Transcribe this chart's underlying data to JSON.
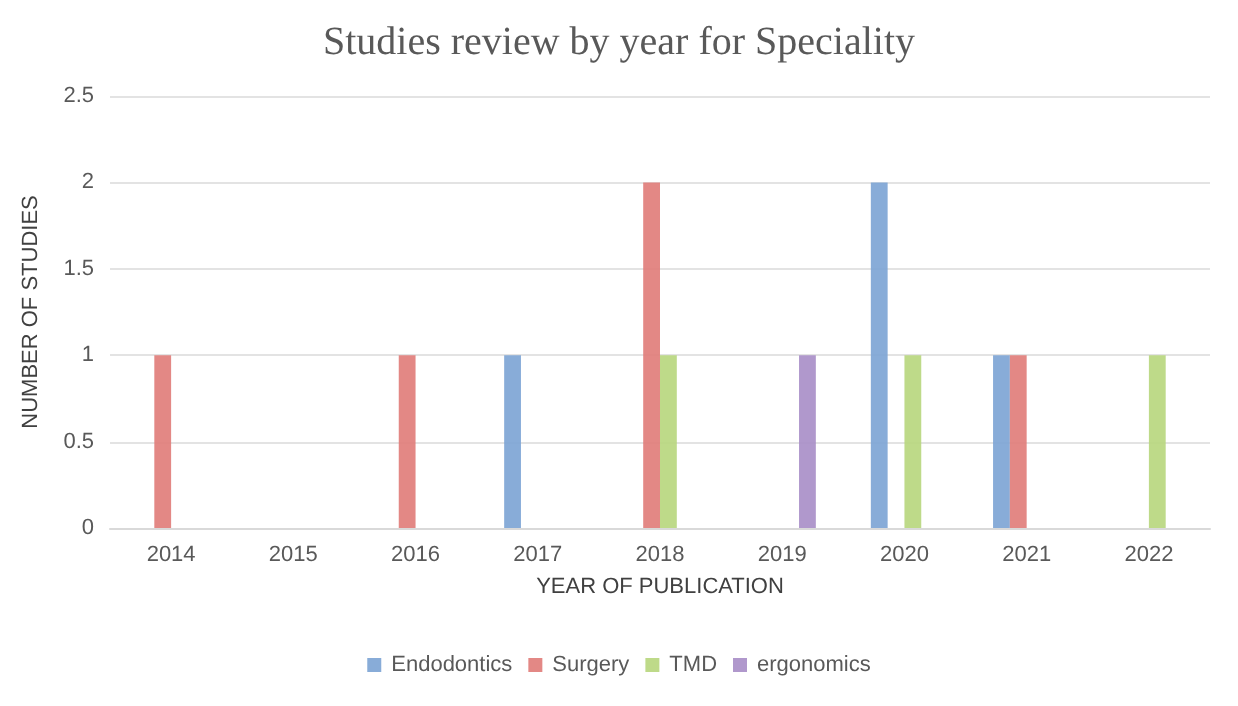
{
  "chart_data": {
    "type": "bar",
    "title": "Studies review by year for Speciality",
    "xlabel": "YEAR OF PUBLICATION",
    "ylabel": "NUMBER OF STUDIES",
    "categories": [
      "2014",
      "2015",
      "2016",
      "2017",
      "2018",
      "2019",
      "2020",
      "2021",
      "2022"
    ],
    "series": [
      {
        "name": "Endodontics",
        "color": "#7ba3d4",
        "values": [
          null,
          null,
          null,
          1,
          null,
          null,
          2,
          1,
          null
        ]
      },
      {
        "name": "Surgery",
        "color": "#e07b78",
        "values": [
          1,
          null,
          1,
          null,
          2,
          null,
          null,
          1,
          null
        ]
      },
      {
        "name": "TMD",
        "color": "#b7d67c",
        "values": [
          null,
          null,
          null,
          null,
          1,
          null,
          1,
          null,
          1
        ]
      },
      {
        "name": "ergonomics",
        "color": "#a78dc6",
        "values": [
          null,
          null,
          null,
          null,
          null,
          1,
          null,
          null,
          null
        ]
      }
    ],
    "ylim": [
      0,
      2.5
    ],
    "yticks": [
      0,
      0.5,
      1,
      1.5,
      2,
      2.5
    ],
    "grid": "y",
    "legend": "bottom"
  }
}
